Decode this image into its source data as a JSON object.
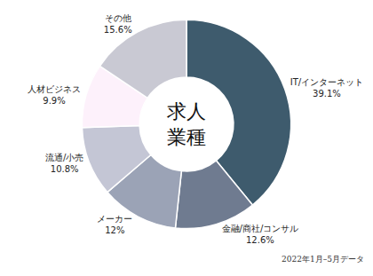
{
  "chart_data": {
    "type": "pie",
    "center_label": [
      "求人",
      "業種"
    ],
    "annotations": [
      "2022年1月–5月データ"
    ],
    "categories": [
      "IT/インターネット",
      "金融/商社/コンサル",
      "メーカー",
      "流通/小売",
      "人材ビジネス",
      "その他"
    ],
    "values": [
      39.1,
      12.6,
      12,
      10.8,
      9.9,
      15.6
    ],
    "value_labels": [
      "39.1%",
      "12.6%",
      "12%",
      "10.8%",
      "9.9%",
      "15.6%"
    ],
    "colors": [
      "#3e5b6d",
      "#6f7b90",
      "#9ba3b6",
      "#c4c6d5",
      "#fdf1fb",
      "#c9c9d3"
    ],
    "data_labels": true,
    "legend": false
  }
}
